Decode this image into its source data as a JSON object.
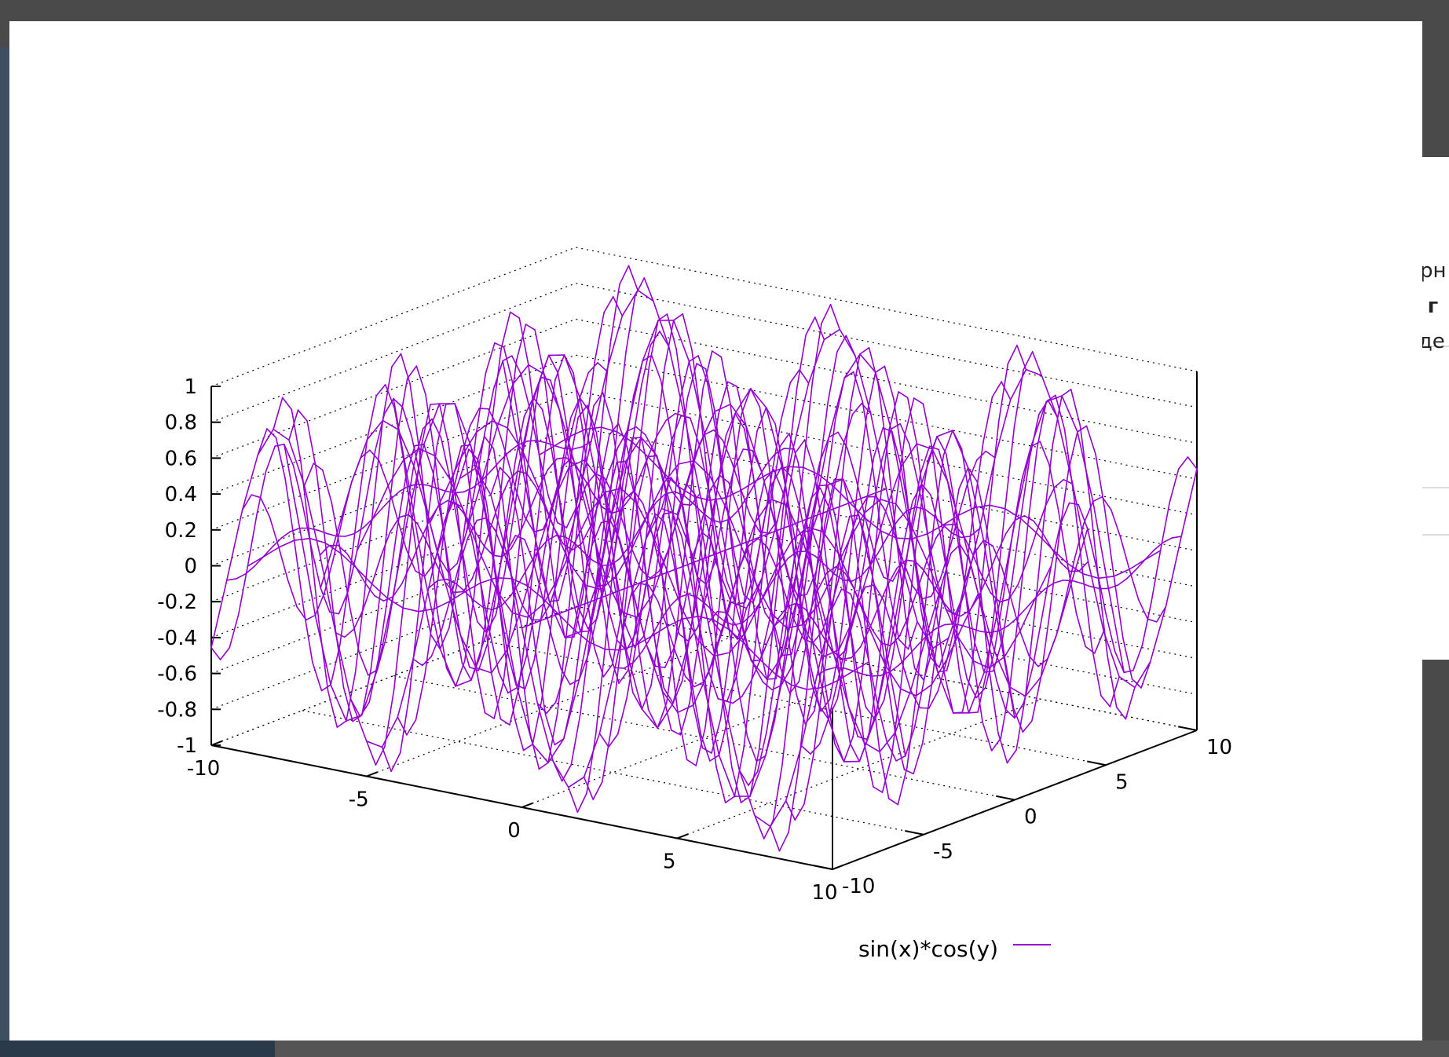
{
  "backdrop": {
    "right_fragments": [
      "ерн",
      "• г",
      "зде"
    ]
  },
  "colors": {
    "top_surface": "#9400d3",
    "bottom_surface": "#009e73",
    "grid": "#000000",
    "background": "#ffffff"
  },
  "chart_data": {
    "type": "surface3d",
    "title": "",
    "function": "sin(x)*cos(y)",
    "xlabel": "",
    "ylabel": "",
    "zlabel": "",
    "xlim": [
      -10,
      10
    ],
    "ylim": [
      -10,
      10
    ],
    "zlim": [
      -1,
      1
    ],
    "x_ticks": [
      "-10",
      "-5",
      "0",
      "5",
      "10"
    ],
    "y_ticks": [
      "-10",
      "-5",
      "0",
      "5",
      "10"
    ],
    "z_ticks": [
      "1",
      "0.8",
      "0.6",
      "0.4",
      "0.2",
      "0",
      "-0.2",
      "-0.4",
      "-0.6",
      "-0.8",
      "-1"
    ],
    "z_tick_values": [
      1,
      0.8,
      0.6,
      0.4,
      0.2,
      0,
      -0.2,
      -0.4,
      -0.6,
      -0.8,
      -1
    ],
    "x_tick_values": [
      -10,
      -5,
      0,
      5,
      10
    ],
    "y_tick_values": [
      -10,
      -5,
      0,
      5,
      10
    ],
    "samples": 40,
    "isosamples": 10,
    "grid": true,
    "legend": {
      "position": "bottom-center",
      "entries": [
        "sin(x)*cos(y)"
      ]
    },
    "series": [
      {
        "name": "sin(x)*cos(y)",
        "color": "#9400d3"
      }
    ]
  }
}
